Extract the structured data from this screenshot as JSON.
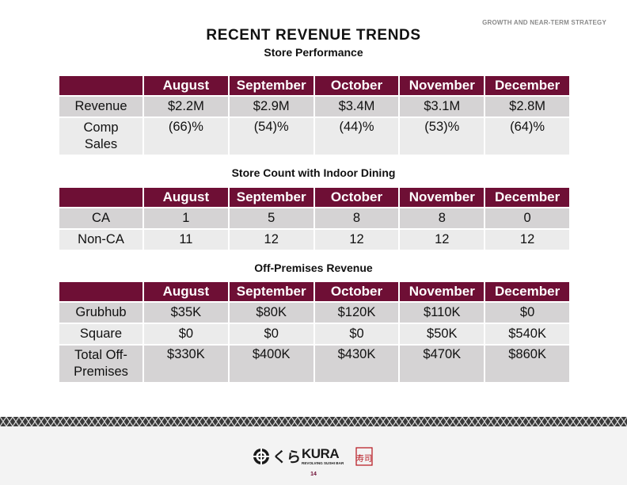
{
  "header_tag": "GROWTH AND NEAR-TERM STRATEGY",
  "title": "RECENT REVENUE TRENDS",
  "months": [
    "August",
    "September",
    "October",
    "November",
    "December"
  ],
  "sections": [
    {
      "title": "Store Performance",
      "rows": [
        {
          "label": "Revenue",
          "values": [
            "$2.2M",
            "$2.9M",
            "$3.4M",
            "$3.1M",
            "$2.8M"
          ]
        },
        {
          "label": "Comp Sales",
          "values": [
            "(66)%",
            "(54)%",
            "(44)%",
            "(53)%",
            "(64)%"
          ]
        }
      ]
    },
    {
      "title": "Store Count with Indoor Dining",
      "rows": [
        {
          "label": "CA",
          "values": [
            "1",
            "5",
            "8",
            "8",
            "0"
          ]
        },
        {
          "label": "Non-CA",
          "values": [
            "11",
            "12",
            "12",
            "12",
            "12"
          ]
        }
      ]
    },
    {
      "title": "Off-Premises Revenue",
      "rows": [
        {
          "label": "Grubhub",
          "values": [
            "$35K",
            "$80K",
            "$120K",
            "$110K",
            "$0"
          ]
        },
        {
          "label": "Square",
          "values": [
            "$0",
            "$0",
            "$0",
            "$50K",
            "$540K"
          ]
        },
        {
          "label": "Total Off-Premises",
          "values": [
            "$330K",
            "$400K",
            "$430K",
            "$470K",
            "$860K"
          ]
        }
      ]
    }
  ],
  "logo": {
    "brand": "KURA",
    "tagline": "REVOLVING SUSHI BAR",
    "japanese": "くら",
    "kanji": "寿司"
  },
  "page_number": "14",
  "colors": {
    "accent": "#6e0f35",
    "row_dark": "#d5d3d4",
    "row_light": "#ebebeb"
  }
}
